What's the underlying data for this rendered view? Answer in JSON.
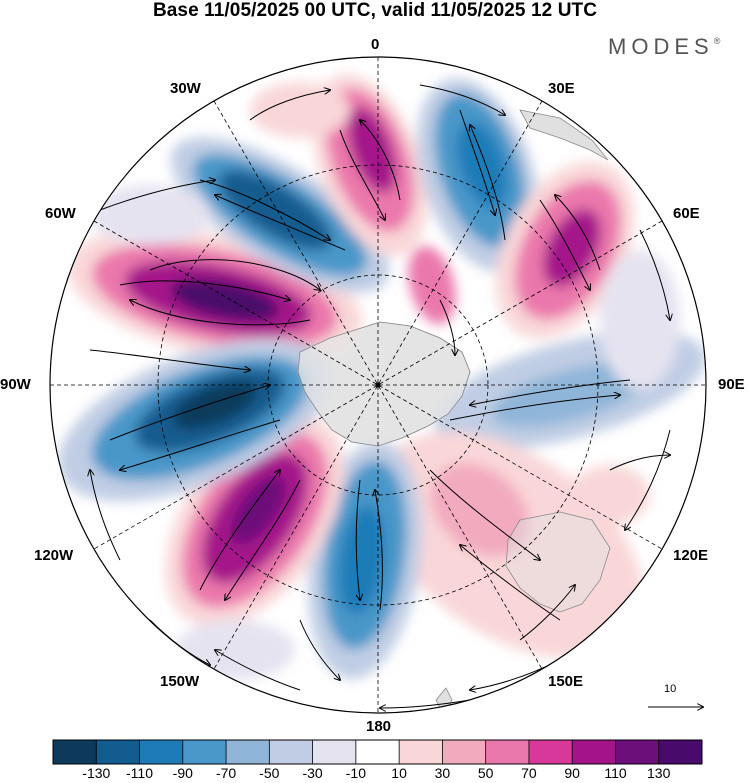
{
  "title": "Base 11/05/2025 00 UTC, valid 11/05/2025 12 UTC",
  "brand": "MODES",
  "brand_mark": "®",
  "projection": "polar stereographic (south pole)",
  "longitude_labels": {
    "top": "0",
    "top_right": "30E",
    "right_upper": "60E",
    "right": "90E",
    "right_lower": "120E",
    "bottom_right": "150E",
    "bottom": "180",
    "bottom_left": "150W",
    "left_lower": "120W",
    "left": "90W",
    "left_upper": "60W",
    "top_left": "30W"
  },
  "reference_vector": "10",
  "colorbar": {
    "ticks": [
      "-130",
      "-110",
      "-90",
      "-70",
      "-50",
      "-30",
      "-10",
      "10",
      "30",
      "50",
      "70",
      "90",
      "110",
      "130"
    ],
    "colors": [
      "#0d3a5c",
      "#125c8f",
      "#1f7bb8",
      "#4a97c9",
      "#8fb5d8",
      "#c0cde4",
      "#e5e3f0",
      "#ffffff",
      "#f9d7d8",
      "#f2aabf",
      "#eb78ac",
      "#d8389a",
      "#a4138a",
      "#6d0f7a",
      "#480a6b"
    ]
  },
  "colors": {
    "land": "#e0e0e0",
    "grid": "#000000",
    "coast": "#7a7a7a"
  }
}
